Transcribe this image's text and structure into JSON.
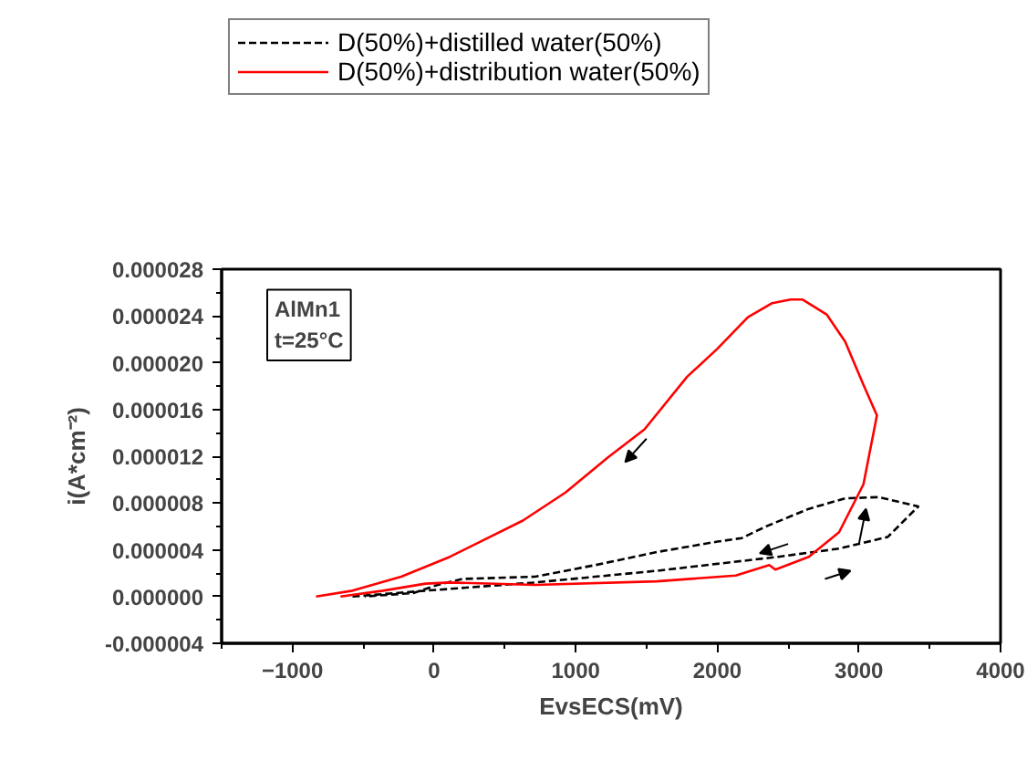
{
  "chart_data": {
    "type": "line",
    "xlabel": "EvsECS(mV)",
    "ylabel": "i(A*cm⁻²)",
    "xlim": [
      -1500,
      4000
    ],
    "xticks": [
      -1000,
      0,
      1000,
      2000,
      3000,
      4000
    ],
    "ylim": [
      -4e-06,
      2.8e-05
    ],
    "yticks": [
      {
        "value": -4e-06,
        "label": "-0.000004"
      },
      {
        "value": 0,
        "label": "0.000000"
      },
      {
        "value": 4e-06,
        "label": "0.000004"
      },
      {
        "value": 8e-06,
        "label": "0.000008"
      },
      {
        "value": 1.2e-05,
        "label": "0.000012"
      },
      {
        "value": 1.6e-05,
        "label": "0.000016"
      },
      {
        "value": 2e-05,
        "label": "0.000020"
      },
      {
        "value": 2.4e-05,
        "label": "0.000024"
      },
      {
        "value": 2.8e-05,
        "label": "0.000028"
      }
    ],
    "legend": "top",
    "grid": false,
    "marker": "none",
    "annotations": [
      "AlMn1\nt=25°C"
    ],
    "series": [
      {
        "name": "D(50%)+distilled water(50%)",
        "color": "#000000",
        "line_style": "dashed",
        "x": [
          -576,
          -60,
          713,
          1572,
          2431,
          2860,
          3204,
          3419,
          3140,
          2903,
          2646,
          2345,
          2173,
          2001,
          1572,
          1142,
          713,
          198,
          26,
          -146,
          -490
        ],
        "values": [
          0,
          5e-07,
          1.2e-06,
          2.2e-06,
          3.4e-06,
          4.1e-06,
          5.1e-06,
          7.7e-06,
          8.5e-06,
          8.4e-06,
          7.5e-06,
          6e-06,
          5e-06,
          4.7e-06,
          3.8e-06,
          2.7e-06,
          1.7e-06,
          1.5e-06,
          1e-06,
          3e-07,
          0
        ]
      },
      {
        "name": "D(50%)+distribution water(50%)",
        "color": "#ff0000",
        "line_style": "solid",
        "x": [
          -661,
          -361,
          -60,
          112,
          713,
          1572,
          2130,
          2367,
          2410,
          2646,
          2860,
          3032,
          3127,
          3032,
          2903,
          2774,
          2603,
          2517,
          2388,
          2216,
          2001,
          1787,
          1486,
          1228,
          928,
          627,
          112,
          -232,
          -576,
          -833
        ],
        "values": [
          0,
          5e-07,
          1.1e-06,
          1.2e-06,
          1e-06,
          1.3e-06,
          1.8e-06,
          2.7e-06,
          2.3e-06,
          3.4e-06,
          5.5e-06,
          9.6e-06,
          1.55e-05,
          1.81e-05,
          2.18e-05,
          2.41e-05,
          2.54e-05,
          2.54e-05,
          2.51e-05,
          2.39e-05,
          2.12e-05,
          1.88e-05,
          1.43e-05,
          1.19e-05,
          8.9e-06,
          6.5e-06,
          3.4e-06,
          1.7e-06,
          5e-07,
          0
        ]
      }
    ]
  }
}
